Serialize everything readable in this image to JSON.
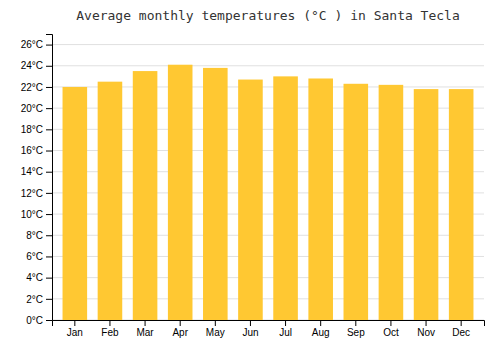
{
  "chart_data": {
    "type": "bar",
    "title": "Average monthly temperatures (°C ) in Santa Tecla",
    "categories": [
      "Jan",
      "Feb",
      "Mar",
      "Apr",
      "May",
      "Jun",
      "Jul",
      "Aug",
      "Sep",
      "Oct",
      "Nov",
      "Dec"
    ],
    "values": [
      22.0,
      22.5,
      23.5,
      24.1,
      23.8,
      22.7,
      23.0,
      22.8,
      22.3,
      22.2,
      21.8,
      21.8
    ],
    "color": "#FFC832",
    "ylim": [
      0,
      27
    ],
    "yticks": [
      {
        "value": 0,
        "label": "0°C"
      },
      {
        "value": 2,
        "label": "2°C"
      },
      {
        "value": 4,
        "label": "4°C"
      },
      {
        "value": 6,
        "label": "6°C"
      },
      {
        "value": 8,
        "label": "8°C"
      },
      {
        "value": 10,
        "label": "10°C"
      },
      {
        "value": 12,
        "label": "12°C"
      },
      {
        "value": 14,
        "label": "14°C"
      },
      {
        "value": 16,
        "label": "16°C"
      },
      {
        "value": 18,
        "label": "18°C"
      },
      {
        "value": 20,
        "label": "20°C"
      },
      {
        "value": 22,
        "label": "22°C"
      },
      {
        "value": 24,
        "label": "24°C"
      },
      {
        "value": 26,
        "label": "26°C"
      }
    ],
    "grid": true
  }
}
